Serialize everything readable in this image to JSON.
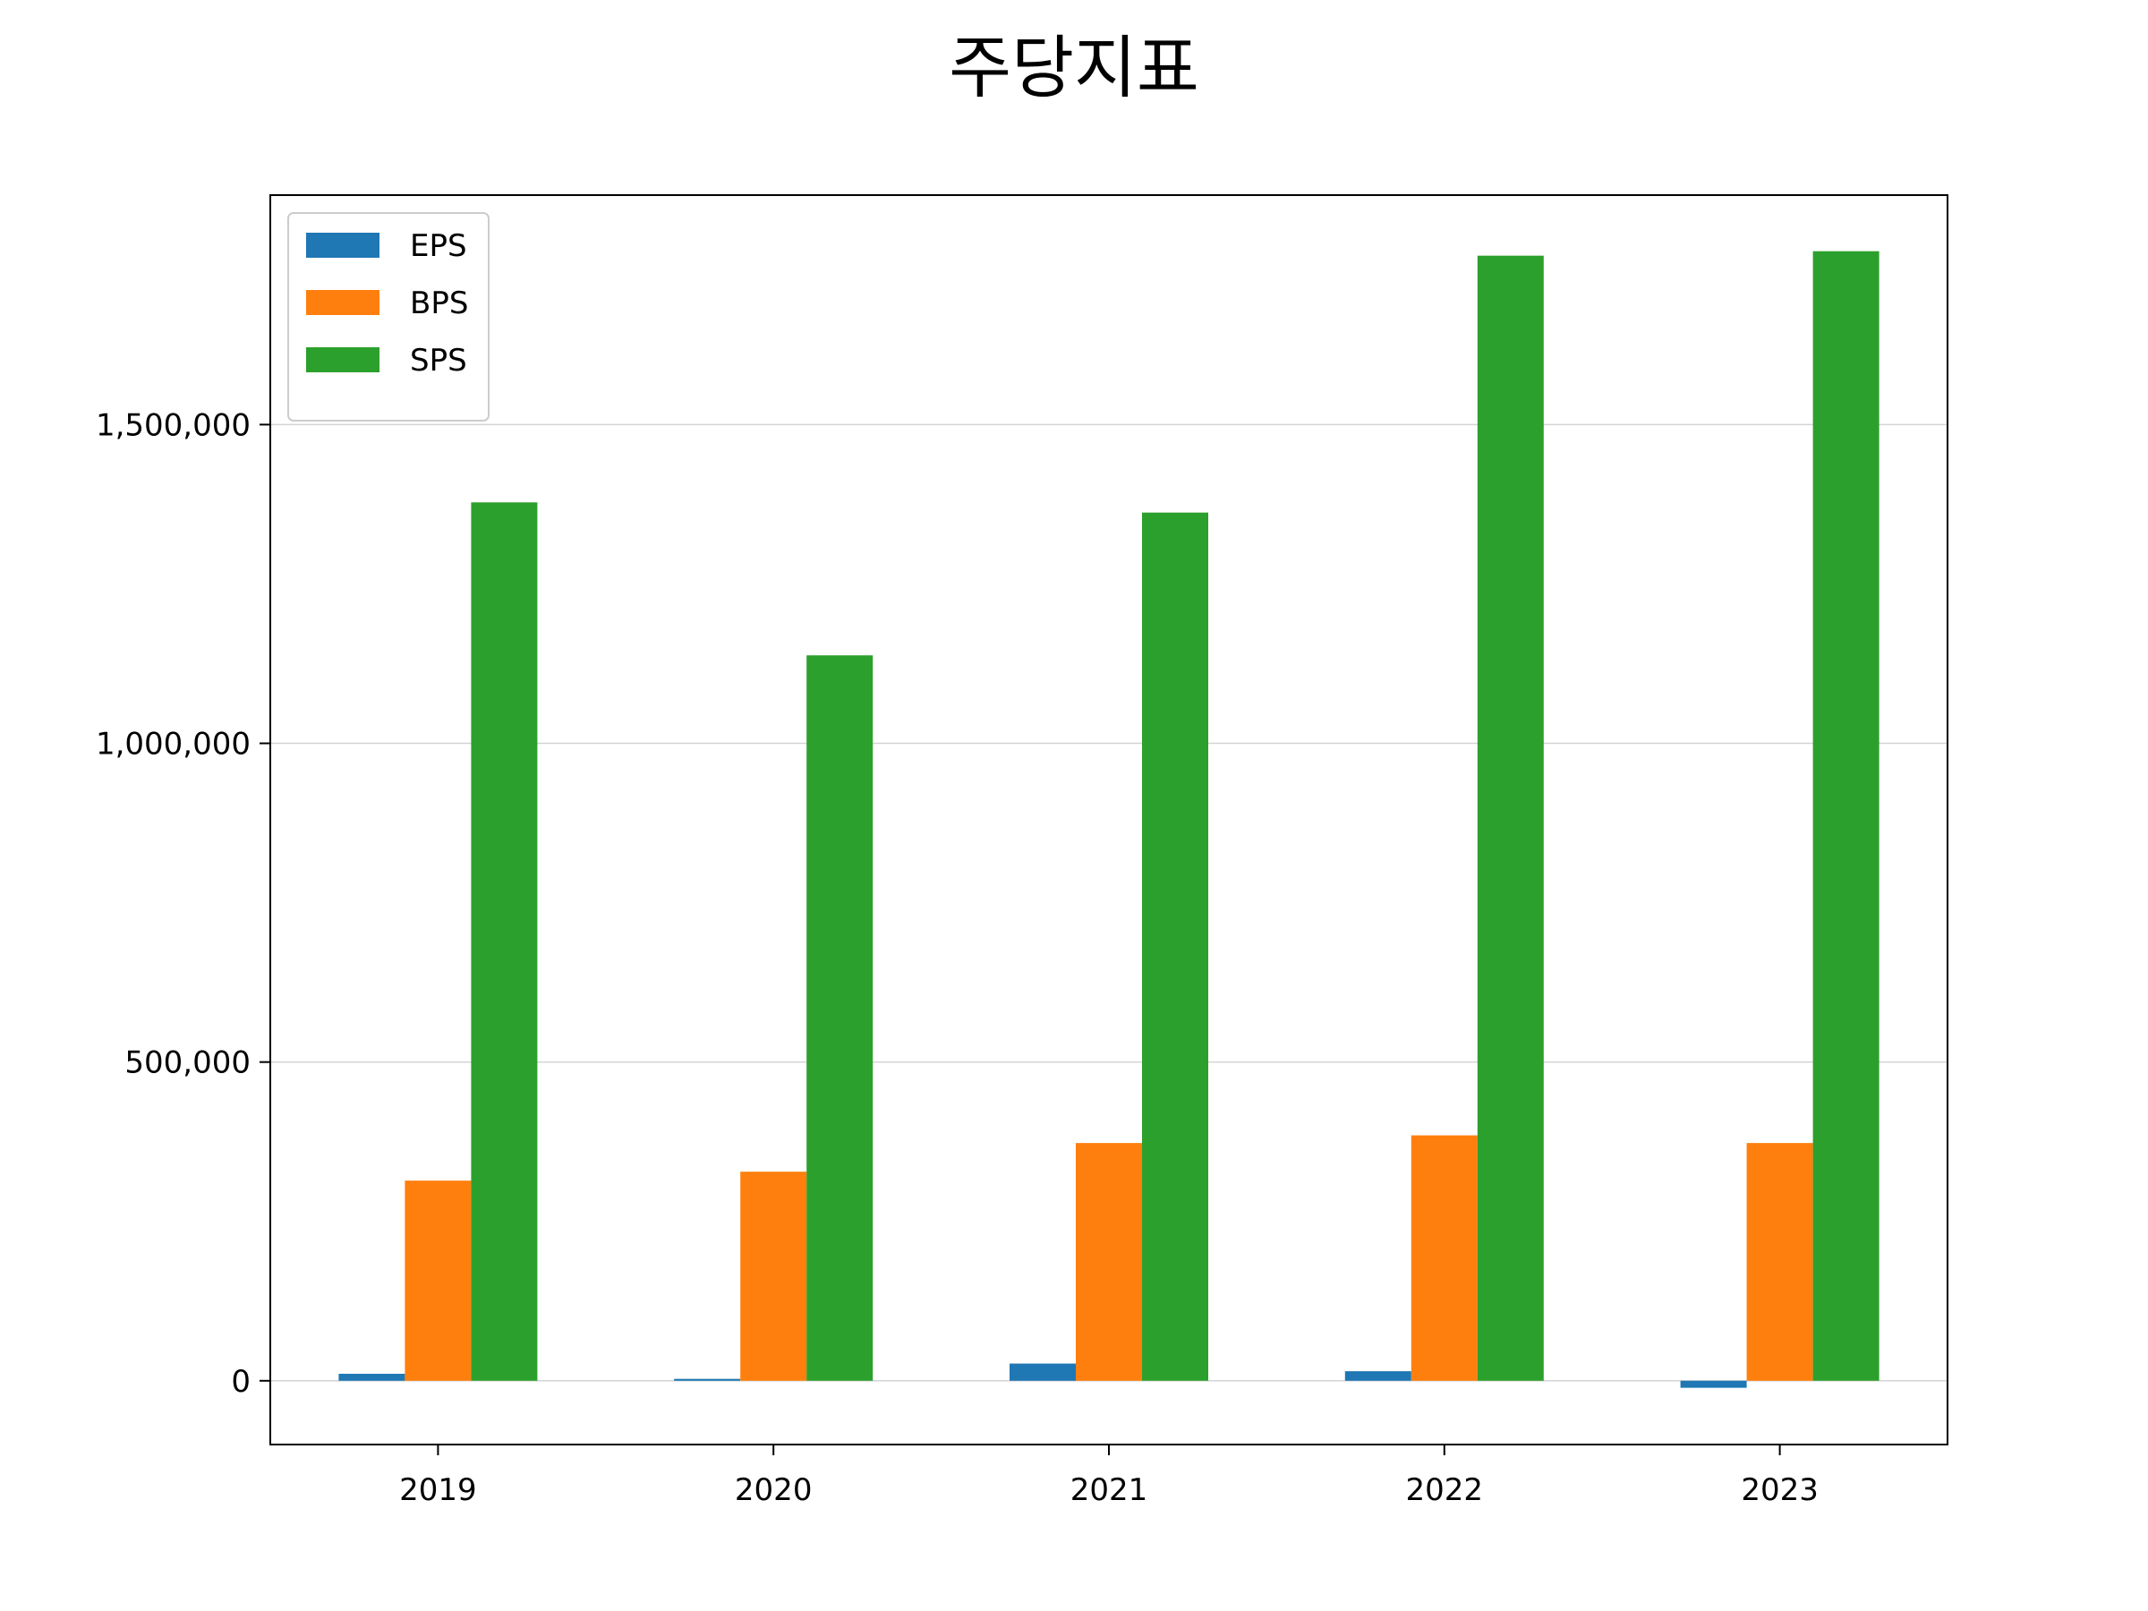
{
  "chart_data": {
    "type": "bar",
    "title": "주당지표",
    "xlabel": "",
    "ylabel": "",
    "categories": [
      "2019",
      "2020",
      "2021",
      "2022",
      "2023"
    ],
    "series": [
      {
        "name": "EPS",
        "color": "#1f77b4",
        "values": [
          11000,
          3000,
          27000,
          15000,
          -11000
        ]
      },
      {
        "name": "BPS",
        "color": "#ff7f0e",
        "values": [
          314000,
          328000,
          373000,
          385000,
          373000
        ]
      },
      {
        "name": "SPS",
        "color": "#2ca02c",
        "values": [
          1378000,
          1138000,
          1362000,
          1765000,
          1772000
        ]
      }
    ],
    "ylim": [
      -100000,
      1860000
    ],
    "yticks": [
      0,
      500000,
      1000000,
      1500000
    ],
    "ytick_labels": [
      "0",
      "500,000",
      "1,000,000",
      "1,500,000"
    ],
    "grid": "y-axis, light gray",
    "legend": "top-left"
  }
}
